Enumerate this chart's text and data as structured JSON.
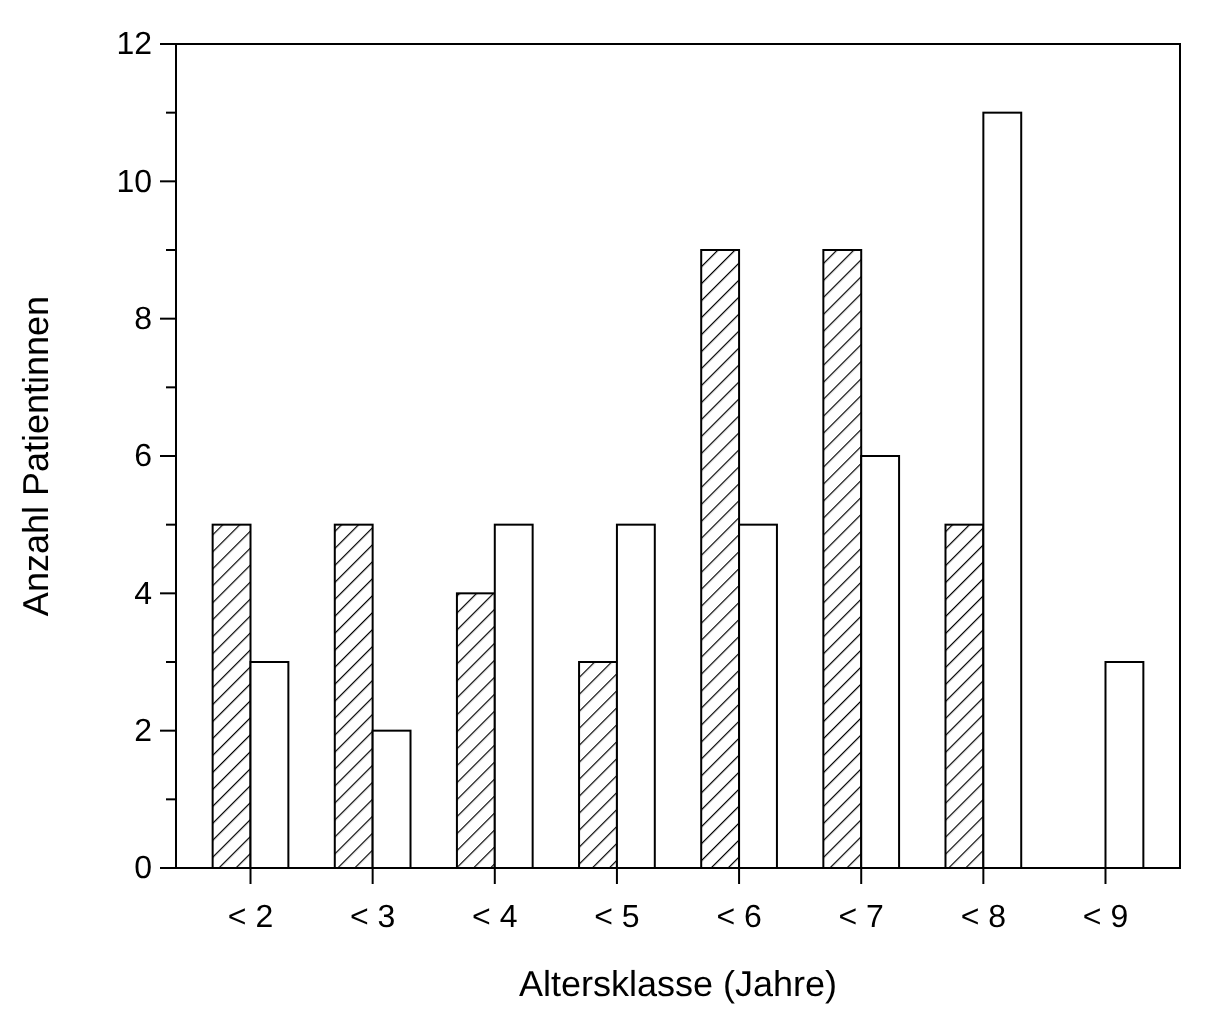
{
  "chart_data": {
    "type": "bar",
    "xlabel": "Altersklasse (Jahre)",
    "ylabel": "Anzahl Patientinnen",
    "categories": [
      "< 2",
      "< 3",
      "< 4",
      "< 5",
      "< 6",
      "< 7",
      "< 8",
      "< 9"
    ],
    "series": [
      {
        "color": "#000000",
        "values": [
          5,
          5,
          4,
          3,
          9,
          9,
          5,
          null
        ]
      },
      {
        "color": "#ffffff",
        "values": [
          3,
          2,
          5,
          5,
          5,
          6,
          11,
          3
        ]
      }
    ],
    "ylim": [
      0,
      12
    ],
    "yticks": [
      0,
      {
        "value": 1,
        "label": null
      },
      2,
      {
        "value": 3,
        "label": null
      },
      4,
      {
        "value": 5,
        "label": null
      },
      6,
      {
        "value": 7,
        "label": null
      },
      8,
      {
        "value": 9,
        "label": null
      },
      10,
      {
        "value": 11,
        "label": null
      },
      12
    ],
    "stacked": false
  }
}
